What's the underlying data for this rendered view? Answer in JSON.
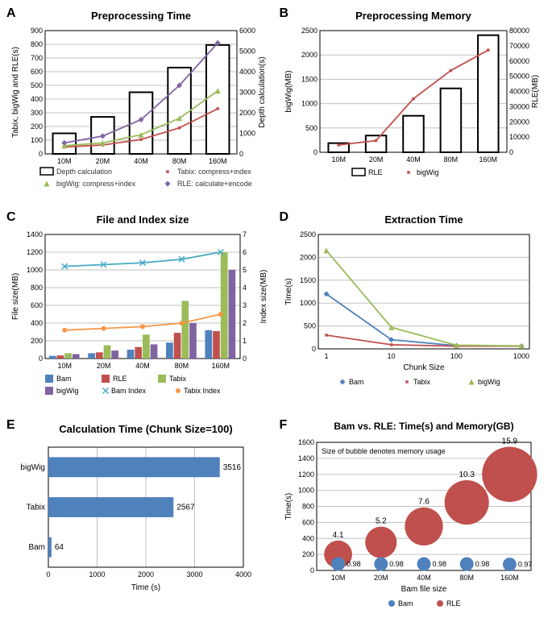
{
  "colors": {
    "white": "#ffffff",
    "black": "#000000",
    "gridline": "#c0c0c0",
    "red": "#c0504d",
    "green": "#9bbb59",
    "purple": "#8064a2",
    "blue": "#4f81bd",
    "teal": "#4bacc6",
    "orange": "#f79646",
    "legend_font": "#333333"
  },
  "A": {
    "label": "A",
    "title": "Preprocessing Time",
    "title_fontsize": 13,
    "title_weight": "bold",
    "categories": [
      "10M",
      "20M",
      "40M",
      "80M",
      "160M"
    ],
    "ylabel_left": "Tabix, bigWig and RLE(s)",
    "ylabel_right": "Depth calculation(s)",
    "ylim_left": [
      0,
      900
    ],
    "ytick_left_step": 100,
    "ylim_right": [
      0,
      6000
    ],
    "ytick_right_step": 1000,
    "bars_depth": [
      1000,
      1800,
      3000,
      4200,
      5300
    ],
    "tabix_line": [
      50,
      65,
      105,
      190,
      330
    ],
    "bigwig_line": [
      60,
      80,
      140,
      260,
      460
    ],
    "rle_line": [
      80,
      130,
      250,
      500,
      810
    ],
    "bar_color": "#ffffff",
    "bar_border": "#000000",
    "tabix_color": "#c0504d",
    "bigwig_color": "#9bbb59",
    "rle_color": "#8064a2",
    "legend": [
      {
        "swatch": "rect",
        "color": "#ffffff",
        "border": "#000000",
        "label": "Depth calculation"
      },
      {
        "swatch": "square",
        "color": "#c0504d",
        "label": "Tabix: compress+index"
      },
      {
        "swatch": "triangle",
        "color": "#9bbb59",
        "label": "bigWig: compress+index"
      },
      {
        "swatch": "diamond",
        "color": "#8064a2",
        "label": "RLE: calculate+encode"
      }
    ],
    "label_fontsize": 10,
    "tick_fontsize": 9
  },
  "B": {
    "label": "B",
    "title": "Preprocessing Memory",
    "title_fontsize": 13,
    "title_weight": "bold",
    "categories": [
      "10M",
      "20M",
      "40M",
      "80M",
      "160M"
    ],
    "ylabel_left": "bigWig(MB)",
    "ylabel_right": "RLE(MB)",
    "ylim_left": [
      0,
      2500
    ],
    "ytick_left_step": 500,
    "ylim_right": [
      0,
      80000
    ],
    "ytick_right_step": 10000,
    "bars_rle": [
      6000,
      11000,
      24000,
      42000,
      77000
    ],
    "bigwig_line": [
      150,
      240,
      1100,
      1680,
      2100
    ],
    "bar_color": "#ffffff",
    "bar_border": "#000000",
    "bigwig_color": "#c0504d",
    "legend": [
      {
        "swatch": "rect",
        "color": "#ffffff",
        "border": "#000000",
        "label": "RLE"
      },
      {
        "swatch": "square",
        "color": "#c0504d",
        "label": "bigWig"
      }
    ]
  },
  "C": {
    "label": "C",
    "title": "File and Index size",
    "title_fontsize": 13,
    "title_weight": "bold",
    "categories": [
      "10M",
      "20M",
      "40M",
      "80M",
      "160M"
    ],
    "ylabel_left": "File size(MB)",
    "ylabel_right": "Index size(MB)",
    "ylim_left": [
      0,
      1400
    ],
    "ytick_left_step": 200,
    "ylim_right": [
      0,
      7
    ],
    "ytick_right_step": 1,
    "group_colors": {
      "Bam": "#4f81bd",
      "RLE": "#c0504d",
      "Tabix": "#9bbb59",
      "bigWig": "#8064a2"
    },
    "bars": {
      "Bam": [
        30,
        60,
        100,
        180,
        320
      ],
      "RLE": [
        35,
        70,
        130,
        290,
        310
      ],
      "Tabix": [
        60,
        150,
        270,
        650,
        1200
      ],
      "bigWig": [
        50,
        90,
        160,
        400,
        1000
      ]
    },
    "bam_index_line": [
      5.2,
      5.3,
      5.4,
      5.6,
      6.0
    ],
    "tabix_index_line": [
      1.6,
      1.7,
      1.8,
      2.0,
      2.5
    ],
    "bam_index_color": "#4bacc6",
    "tabix_index_color": "#f79646",
    "legend_series": [
      "Bam",
      "RLE",
      "Tabix",
      "bigWig"
    ],
    "legend_lines": [
      {
        "color": "#4bacc6",
        "label": "Bam Index"
      },
      {
        "color": "#f79646",
        "label": "Tabix Index"
      }
    ]
  },
  "D": {
    "label": "D",
    "title": "Extraction Time",
    "title_fontsize": 13,
    "title_weight": "bold",
    "x_values": [
      1,
      10,
      100,
      1000
    ],
    "x_labels": [
      "1",
      "10",
      "100",
      "1000"
    ],
    "xlabel": "Chunk Size",
    "ylabel": "Time(s)",
    "ylim": [
      0,
      2500
    ],
    "ytick_step": 500,
    "bam": [
      1200,
      200,
      70,
      60
    ],
    "tabix": [
      300,
      90,
      60,
      60
    ],
    "bigwig": [
      2150,
      470,
      80,
      65
    ],
    "bam_color": "#4f81bd",
    "tabix_color": "#c0504d",
    "bigwig_color": "#9bbb59",
    "legend": [
      {
        "color": "#4f81bd",
        "marker": "diamond",
        "label": "Bam"
      },
      {
        "color": "#c0504d",
        "marker": "square",
        "label": "Tabix"
      },
      {
        "color": "#9bbb59",
        "marker": "triangle",
        "label": "bigWig"
      }
    ]
  },
  "E": {
    "label": "E",
    "title": "Calculation Time (Chunk Size=100)",
    "title_fontsize": 13,
    "title_weight": "bold",
    "categories": [
      "bigWig",
      "Tabix",
      "Bam"
    ],
    "values": [
      3516,
      2567,
      64
    ],
    "xlim": [
      0,
      4000
    ],
    "xtick_step": 1000,
    "xlabel": "Time (s)",
    "bar_color": "#4f81bd"
  },
  "F": {
    "label": "F",
    "title": "Bam vs. RLE: Time(s) and Memory(GB)",
    "title_fontsize": 12,
    "title_weight": "bold",
    "subtitle": "Size of bubble denotes memory usage",
    "categories": [
      "10M",
      "20M",
      "40M",
      "80M",
      "160M"
    ],
    "xlabel": "Bam file size",
    "ylabel": "Time(s)",
    "ylim": [
      0,
      1600
    ],
    "ytick_step": 200,
    "bam": {
      "times": [
        80,
        80,
        80,
        80,
        75
      ],
      "mem": [
        0.98,
        0.98,
        0.98,
        0.98,
        0.97
      ],
      "color": "#4f81bd"
    },
    "rle": {
      "times": [
        200,
        350,
        550,
        850,
        1200
      ],
      "mem": [
        4.1,
        5.2,
        7.6,
        10.3,
        15.9
      ],
      "color": "#c0504d"
    },
    "bubble_scale": 3.3,
    "legend": [
      {
        "color": "#4f81bd",
        "label": "Bam"
      },
      {
        "color": "#c0504d",
        "label": "RLE"
      }
    ]
  }
}
